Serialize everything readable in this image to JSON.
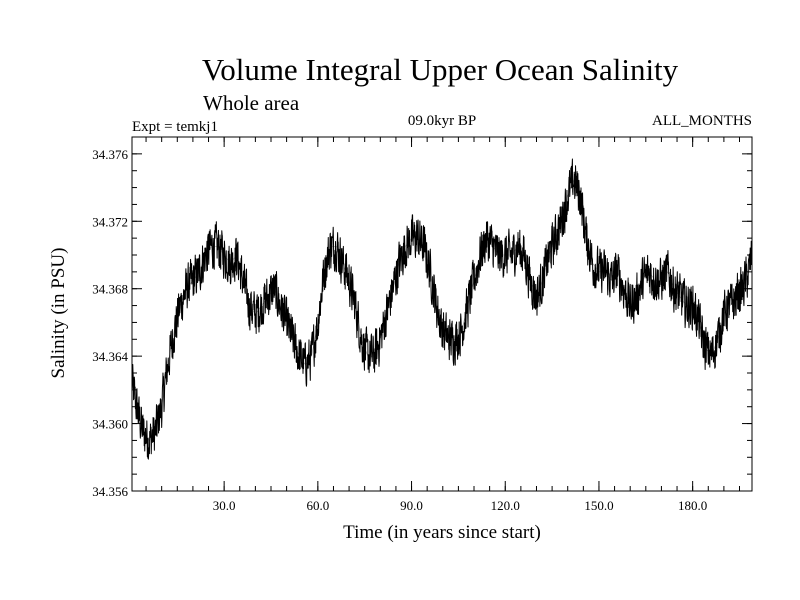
{
  "chart_data": {
    "type": "line",
    "title": "Volume Integral Upper Ocean Salinity",
    "subtitle": "Whole area",
    "header_left": "Expt = temkj1",
    "header_center": "09.0kyr BP",
    "header_right": "ALL_MONTHS",
    "xlabel": "Time (in years since start)",
    "ylabel": "Salinity (in PSU)",
    "xlim": [
      0.5,
      199
    ],
    "ylim": [
      34.356,
      34.377
    ],
    "x_ticks": [
      30.0,
      60.0,
      90.0,
      120.0,
      150.0,
      180.0
    ],
    "x_tick_labels": [
      "30.0",
      "60.0",
      "90.0",
      "120.0",
      "150.0",
      "180.0"
    ],
    "y_ticks": [
      34.356,
      34.36,
      34.364,
      34.368,
      34.372,
      34.376
    ],
    "y_tick_labels": [
      "34.356",
      "34.360",
      "34.364",
      "34.368",
      "34.372",
      "34.376"
    ],
    "series": [
      {
        "name": "Salinity",
        "x": [
          0.5,
          2,
          4,
          6,
          8,
          10,
          12,
          14,
          16,
          18,
          20,
          22,
          24,
          26,
          28,
          30,
          32,
          34,
          36,
          38,
          40,
          42,
          44,
          46,
          48,
          50,
          52,
          54,
          56,
          58,
          60,
          62,
          64,
          66,
          68,
          70,
          72,
          74,
          76,
          78,
          80,
          82,
          84,
          86,
          88,
          90,
          92,
          94,
          96,
          98,
          100,
          102,
          104,
          106,
          108,
          110,
          112,
          114,
          116,
          118,
          120,
          122,
          124,
          126,
          128,
          130,
          132,
          134,
          136,
          138,
          140,
          142,
          144,
          146,
          148,
          150,
          152,
          154,
          156,
          158,
          160,
          162,
          164,
          166,
          168,
          170,
          172,
          174,
          176,
          178,
          180,
          182,
          184,
          186,
          188,
          190,
          192,
          194,
          196,
          198,
          199
        ],
        "values": [
          34.3625,
          34.361,
          34.3595,
          34.359,
          34.3595,
          34.361,
          34.3635,
          34.3655,
          34.367,
          34.368,
          34.3685,
          34.369,
          34.37,
          34.3705,
          34.3705,
          34.37,
          34.3695,
          34.37,
          34.3685,
          34.367,
          34.3665,
          34.367,
          34.3675,
          34.368,
          34.367,
          34.366,
          34.365,
          34.364,
          34.3635,
          34.364,
          34.366,
          34.369,
          34.3705,
          34.3705,
          34.3695,
          34.3685,
          34.367,
          34.365,
          34.364,
          34.364,
          34.365,
          34.3665,
          34.368,
          34.3695,
          34.3705,
          34.371,
          34.371,
          34.3705,
          34.369,
          34.367,
          34.3655,
          34.365,
          34.365,
          34.3655,
          34.367,
          34.3685,
          34.37,
          34.371,
          34.3705,
          34.37,
          34.37,
          34.37,
          34.3705,
          34.37,
          34.3685,
          34.3675,
          34.3685,
          34.37,
          34.371,
          34.372,
          34.3735,
          34.3745,
          34.3735,
          34.371,
          34.3695,
          34.369,
          34.369,
          34.3685,
          34.369,
          34.368,
          34.367,
          34.3675,
          34.3685,
          34.369,
          34.3685,
          34.3685,
          34.369,
          34.368,
          34.3675,
          34.367,
          34.367,
          34.366,
          34.3645,
          34.364,
          34.365,
          34.3665,
          34.367,
          34.3675,
          34.368,
          34.369,
          34.37
        ]
      }
    ]
  }
}
